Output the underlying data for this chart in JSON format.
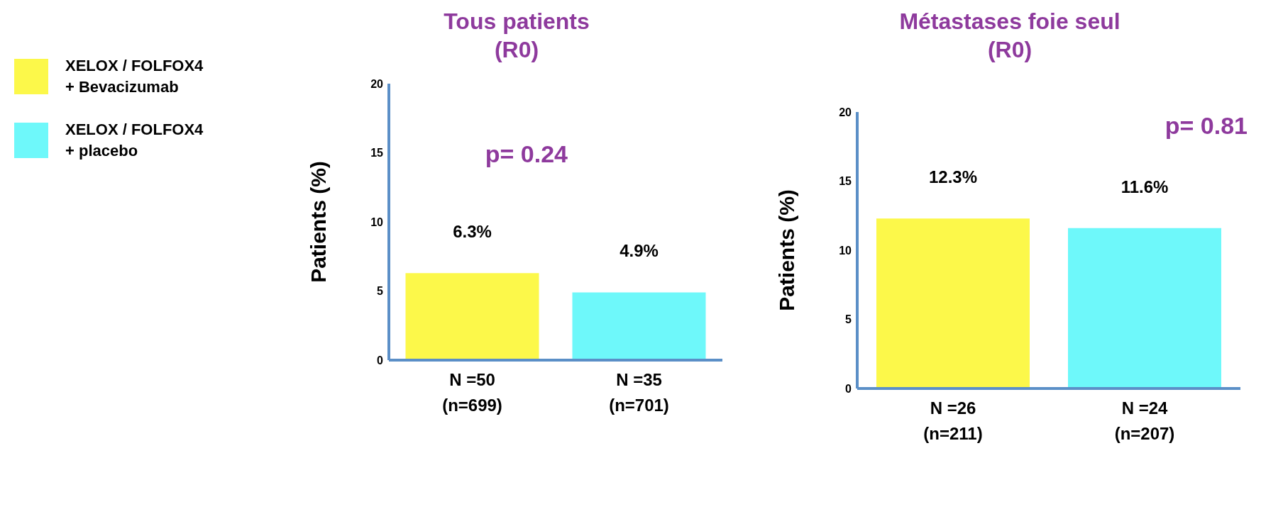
{
  "chart_data": [
    {
      "type": "bar",
      "title": "Tous patients\n(R0)",
      "ylabel": "Patients (%)",
      "categories": [
        "N =50\n(n=699)",
        "N =35\n(n=701)"
      ],
      "series": [
        {
          "name": "XELOX / FOLFOX4\n+ Bevacizumab",
          "color": "#fcf84a",
          "values": [
            6.3,
            null
          ],
          "value_labels": [
            "6.3%",
            null
          ]
        },
        {
          "name": "XELOX / FOLFOX4\n+ placebo",
          "color": "#6ef8fa",
          "values": [
            null,
            4.9
          ],
          "value_labels": [
            null,
            "4.9%"
          ]
        }
      ],
      "ylim": [
        0,
        20
      ],
      "yticks": [
        0,
        5,
        10,
        15,
        20
      ],
      "annotations": [
        "p= 0.24"
      ],
      "legend": "left",
      "grid": false
    },
    {
      "type": "bar",
      "title": "Métastases foie seul\n(R0)",
      "ylabel": "Patients (%)",
      "categories": [
        "N =26\n(n=211)",
        "N =24\n(n=207)"
      ],
      "series": [
        {
          "color": "#fcf84a",
          "values": [
            12.3,
            null
          ],
          "value_labels": [
            "12.3%",
            null
          ]
        },
        {
          "color": "#6ef8fa",
          "values": [
            null,
            11.6
          ],
          "value_labels": [
            null,
            "11.6%"
          ]
        }
      ],
      "ylim": [
        0,
        20
      ],
      "yticks": [
        0,
        5,
        10,
        15,
        20
      ],
      "annotations": [
        "p= 0.81"
      ],
      "grid": false
    }
  ]
}
